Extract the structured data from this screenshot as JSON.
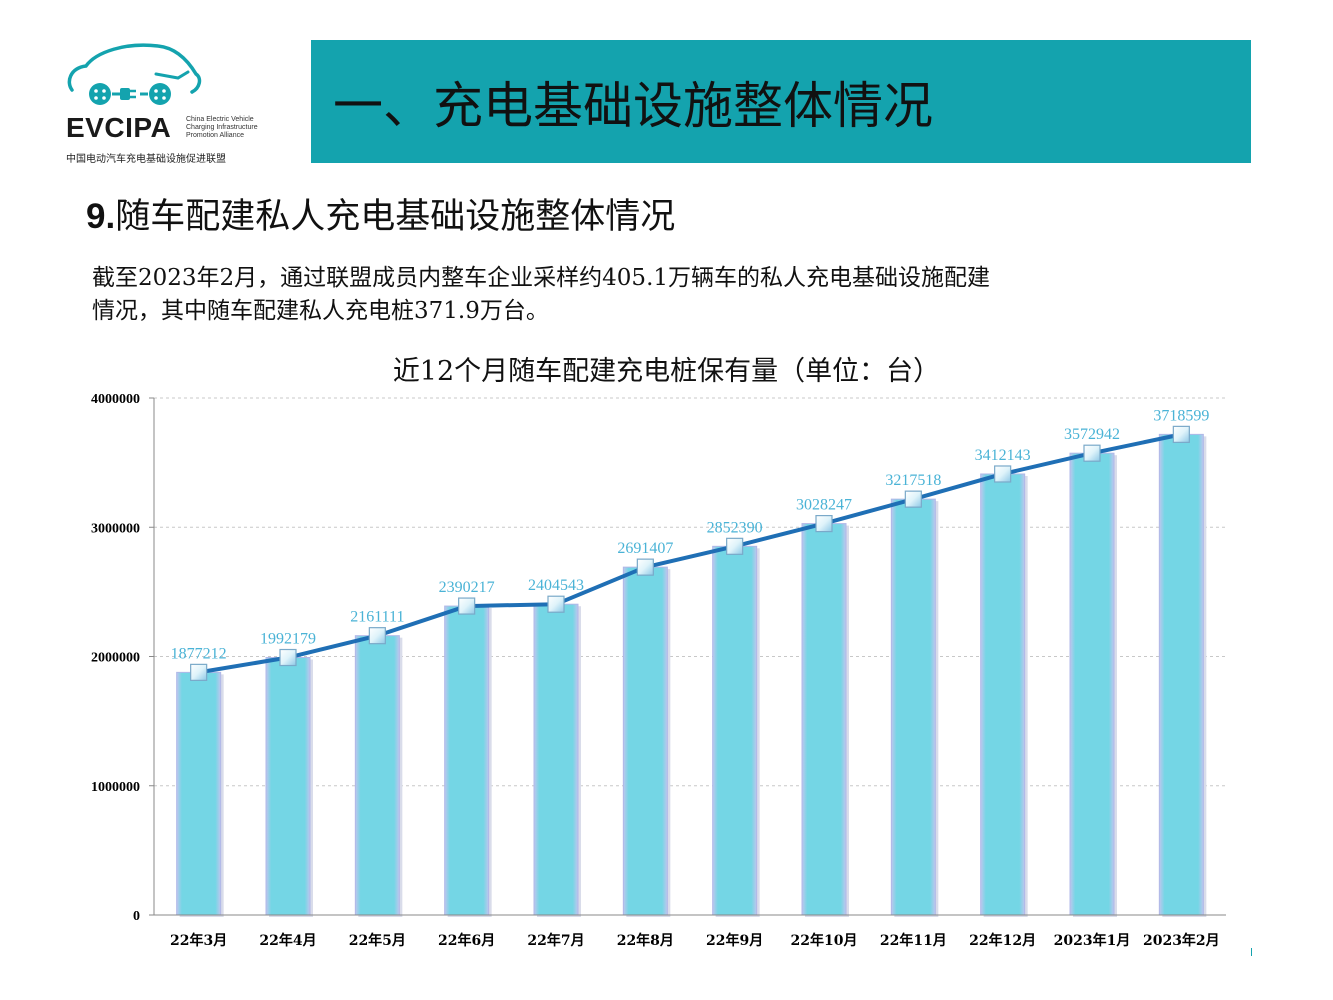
{
  "logo": {
    "wordmark": "EVCIPA",
    "english": [
      "China Electric Vehicle",
      "Charging Infrastructure",
      "Promotion Alliance"
    ],
    "chinese": "中国电动汽车充电基础设施促进联盟",
    "icon_name": "ev-car-plug-logo-icon",
    "color": "#14a3ae"
  },
  "header": {
    "title": "一、充电基础设施整体情况",
    "band_color": "#14a3ae"
  },
  "section": {
    "number": "9.",
    "title": "随车配建私人充电基础设施整体情况"
  },
  "description": {
    "line1": "截至2023年2月，通过联盟成员内整车企业采样约405.1万辆车的私人充电基础设施配建",
    "line2": "情况，其中随车配建私人充电桩371.9万台。"
  },
  "chart_data": {
    "type": "bar",
    "title": "近12个月随车配建充电桩保有量（单位：台）",
    "categories": [
      "22年3月",
      "22年4月",
      "22年5月",
      "22年6月",
      "22年7月",
      "22年8月",
      "22年9月",
      "22年10月",
      "22年11月",
      "22年12月",
      "2023年1月",
      "2023年2月"
    ],
    "series": [
      {
        "values": [
          1877212,
          1992179,
          2161111,
          2390217,
          2404543,
          2691407,
          2852390,
          3028247,
          3217518,
          3412143,
          3572942,
          3718599
        ]
      }
    ],
    "overlay": "line with square markers over bars",
    "ylim": [
      0,
      4000000
    ],
    "yticks": [
      "0",
      "1000000",
      "2000000",
      "3000000",
      "4000000"
    ],
    "grid": "horizontal dashed",
    "colors": {
      "bar_fill": "#74d6e5",
      "bar_edge": "#b0b8e8",
      "line": "#1f6fb5",
      "data_label": "#4ab3d6"
    }
  }
}
